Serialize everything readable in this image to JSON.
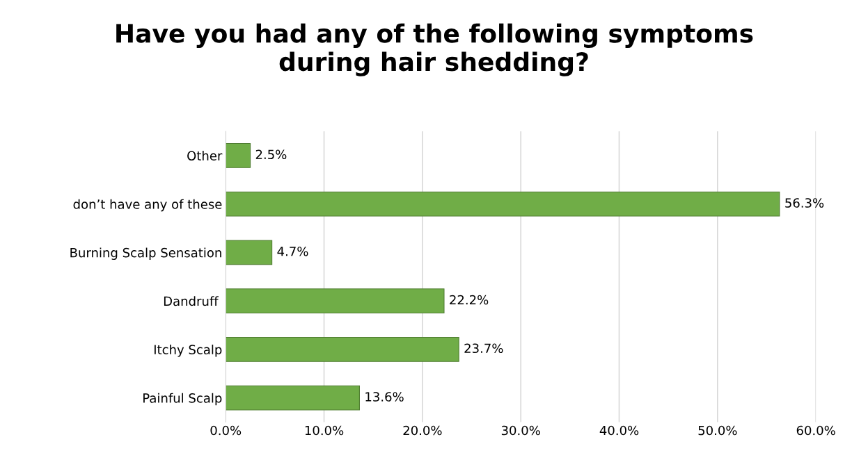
{
  "chart_data": {
    "type": "bar",
    "orientation": "horizontal",
    "title": "Have you had any of the following symptoms\nduring hair shedding?",
    "categories": [
      "Other",
      "don’t have any of these",
      "Burning Scalp Sensation",
      "Dandruff ",
      "Itchy Scalp",
      "Painful Scalp"
    ],
    "values": [
      2.5,
      56.3,
      4.7,
      22.2,
      23.7,
      13.6
    ],
    "value_labels": [
      "2.5%",
      "56.3%",
      "4.7%",
      "22.2%",
      "23.7%",
      "13.6%"
    ],
    "color": "#70ad47",
    "xlim": [
      0,
      60
    ],
    "xticks": [
      {
        "value": 0,
        "label": "0.0%"
      },
      {
        "value": 10,
        "label": "10.0%"
      },
      {
        "value": 20,
        "label": "20.0%"
      },
      {
        "value": 30,
        "label": "30.0%"
      },
      {
        "value": 40,
        "label": "40.0%"
      },
      {
        "value": 50,
        "label": "50.0%"
      },
      {
        "value": 60,
        "label": "60.0%"
      }
    ],
    "grid": "x",
    "legend": false
  }
}
